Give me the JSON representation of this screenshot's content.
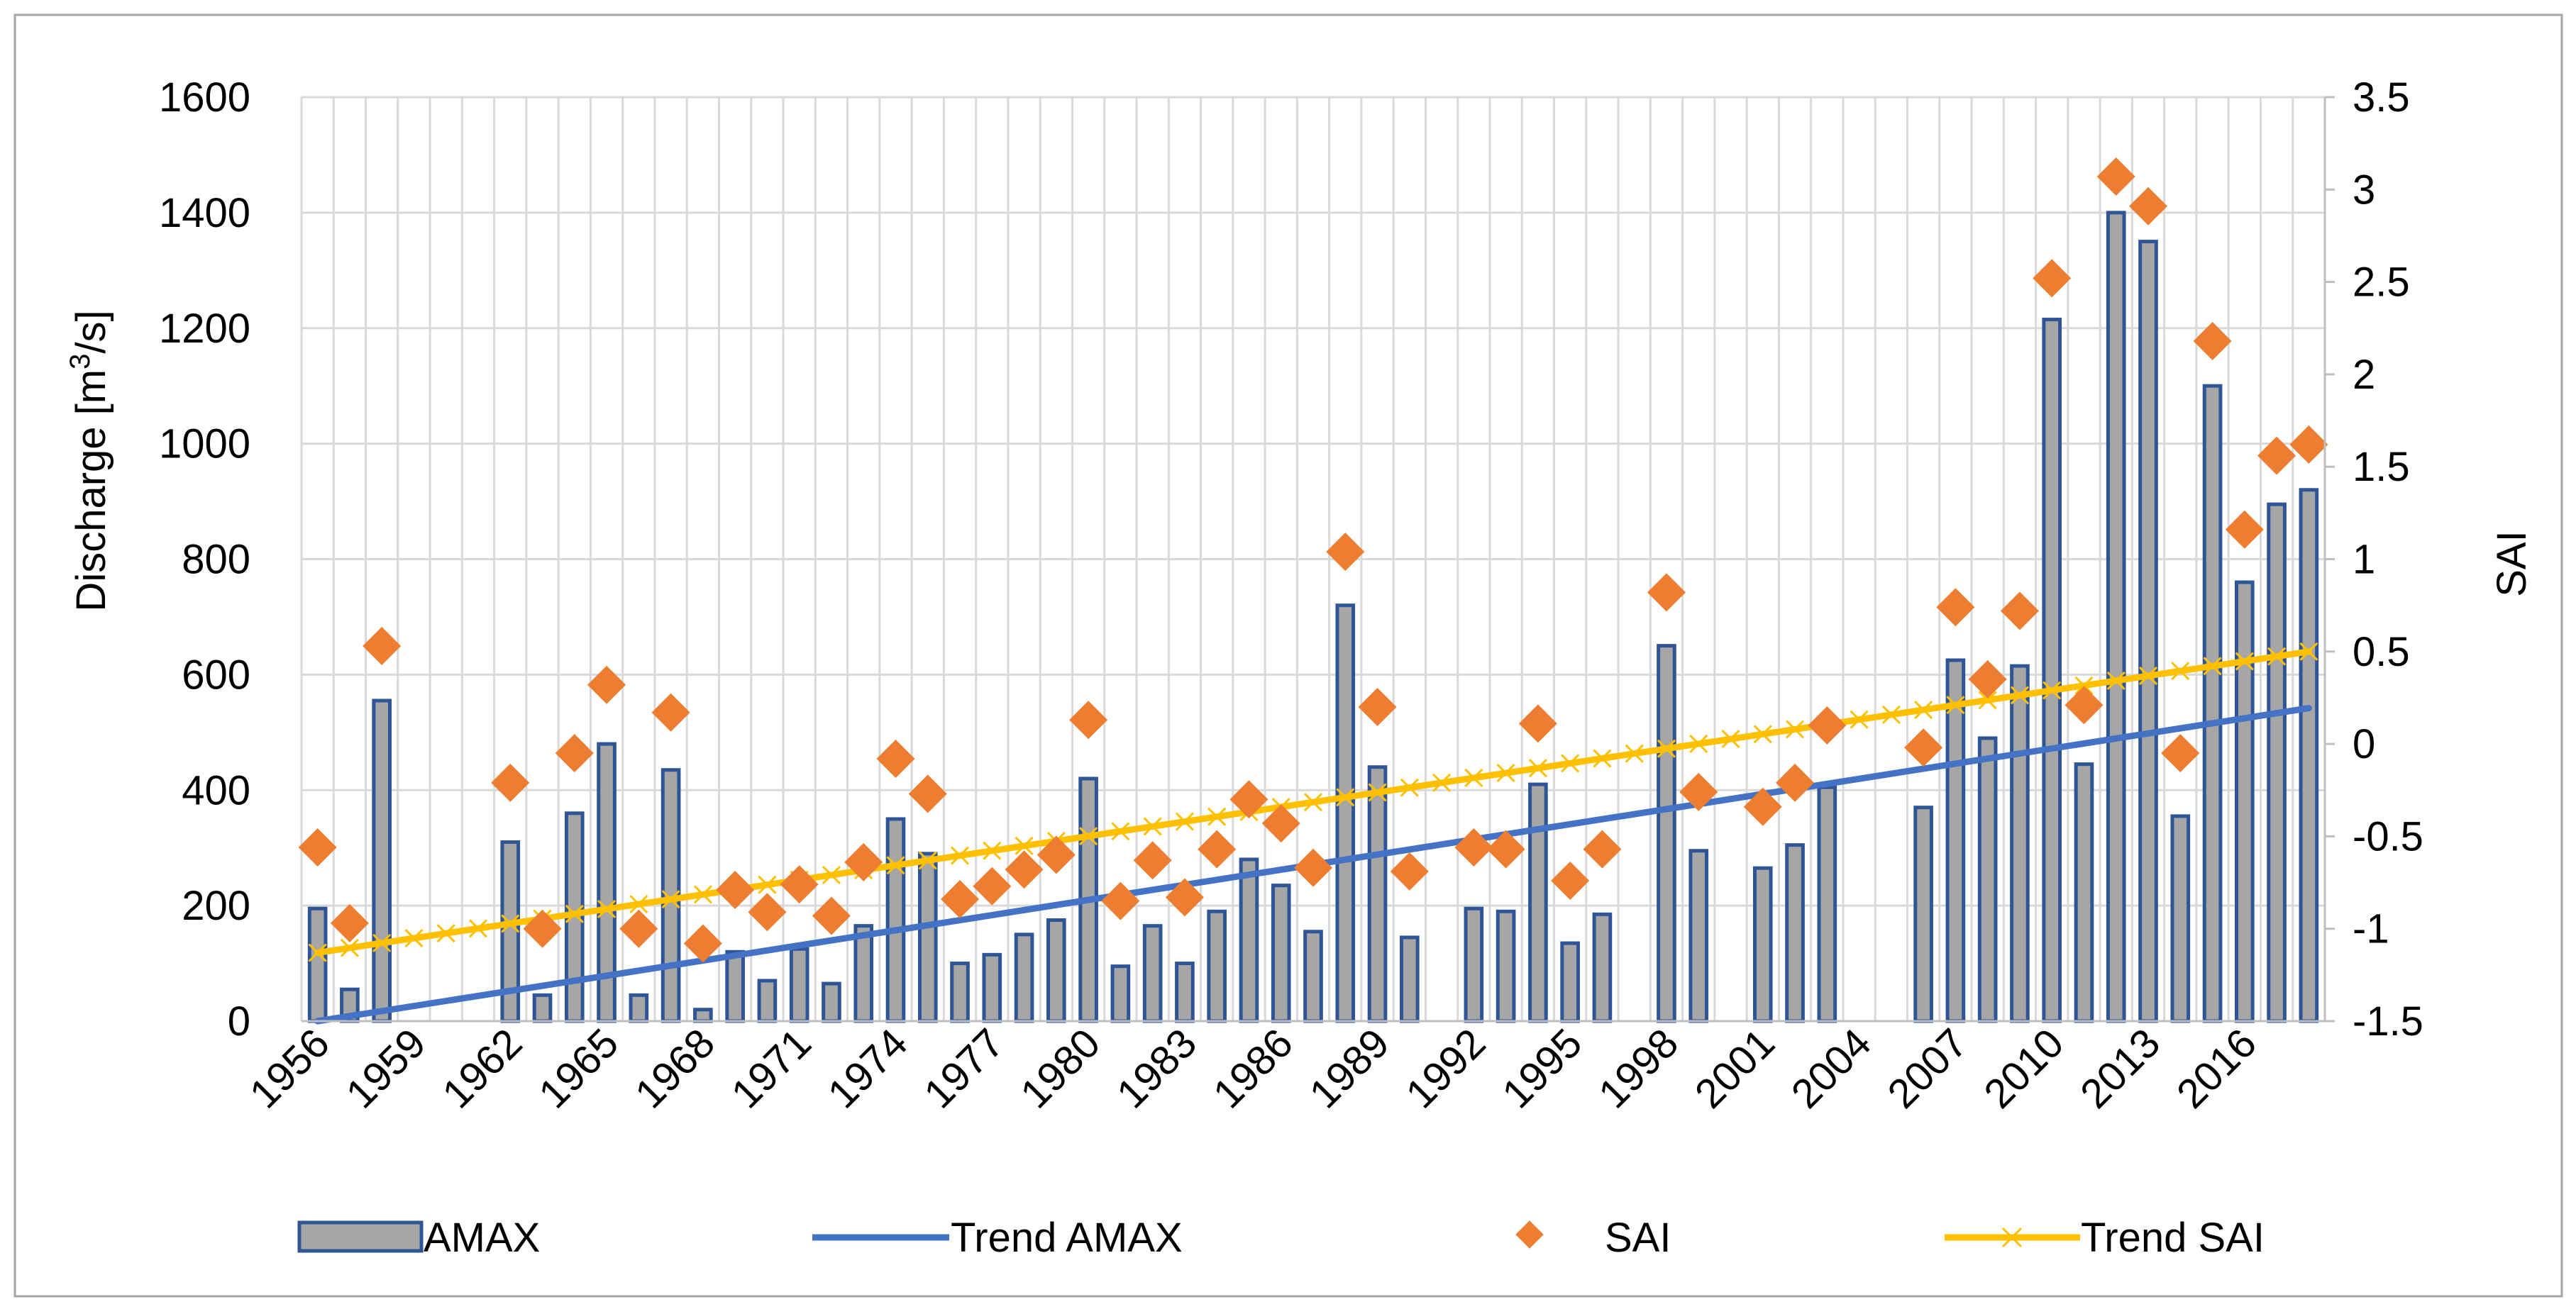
{
  "chart_data": {
    "type": "bar",
    "title": "",
    "xlabel": "",
    "ylabel": "Discharge  [m",
    "ylabel_superscript": "3",
    "ylabel_suffix": "/s]",
    "y2label": "SAI",
    "ylim": [
      0,
      1600
    ],
    "y2lim": [
      -1.5,
      3.5
    ],
    "yticks": [
      "0",
      "200",
      "400",
      "600",
      "800",
      "1000",
      "1200",
      "1400",
      "1600"
    ],
    "y2ticks": [
      "-1.5",
      "-1",
      "-0.5",
      "0",
      "0.5",
      "1",
      "1.5",
      "2",
      "2.5",
      "3",
      "3.5"
    ],
    "xtick_labels": [
      "1956",
      "1959",
      "1962",
      "1965",
      "1968",
      "1971",
      "1974",
      "1977",
      "1980",
      "1983",
      "1986",
      "1989",
      "1992",
      "1995",
      "1998",
      "2001",
      "2004",
      "2007",
      "2010",
      "2013",
      "2016"
    ],
    "grid": true,
    "categories": [
      "1956",
      "1957",
      "1958",
      "1959",
      "1960",
      "1961",
      "1962",
      "1963",
      "1964",
      "1965",
      "1966",
      "1967",
      "1968",
      "1969",
      "1970",
      "1971",
      "1972",
      "1973",
      "1974",
      "1975",
      "1976",
      "1977",
      "1978",
      "1979",
      "1980",
      "1981",
      "1982",
      "1983",
      "1984",
      "1985",
      "1986",
      "1987",
      "1988",
      "1989",
      "1990",
      "1991",
      "1992",
      "1993",
      "1994",
      "1995",
      "1996",
      "1997",
      "1998",
      "1999",
      "2000",
      "2001",
      "2002",
      "2003",
      "2004",
      "2005",
      "2006",
      "2007",
      "2008",
      "2009",
      "2010",
      "2011",
      "2012",
      "2013",
      "2014",
      "2015",
      "2016",
      "2017",
      "2018"
    ],
    "series": [
      {
        "name": "AMAX",
        "type": "bar",
        "axis": "left",
        "color": "#a6a6a6",
        "edge_color": "#2f5597",
        "values": [
          195,
          55,
          555,
          null,
          null,
          null,
          310,
          45,
          360,
          480,
          45,
          435,
          20,
          120,
          70,
          125,
          65,
          165,
          350,
          290,
          100,
          115,
          150,
          175,
          420,
          95,
          165,
          100,
          190,
          280,
          235,
          155,
          720,
          440,
          145,
          null,
          195,
          190,
          410,
          135,
          185,
          null,
          650,
          295,
          null,
          265,
          305,
          405,
          null,
          null,
          370,
          625,
          490,
          615,
          1215,
          445,
          1400,
          1350,
          355,
          1100,
          760,
          895,
          920
        ]
      },
      {
        "name": "Trend AMAX",
        "type": "line",
        "axis": "left",
        "color": "#4472c4",
        "start": 0,
        "end": 542
      },
      {
        "name": "SAI",
        "type": "scatter",
        "axis": "right",
        "color": "#ed7d31",
        "values": [
          -0.56,
          -0.97,
          0.53,
          null,
          null,
          null,
          -0.21,
          -1.0,
          -0.05,
          0.32,
          -1.0,
          0.17,
          -1.08,
          -0.79,
          -0.91,
          -0.76,
          -0.93,
          -0.64,
          -0.08,
          -0.27,
          -0.84,
          -0.77,
          -0.68,
          -0.6,
          0.13,
          -0.85,
          -0.63,
          -0.83,
          -0.57,
          -0.3,
          -0.43,
          -0.67,
          1.04,
          0.2,
          -0.69,
          null,
          -0.56,
          -0.57,
          0.11,
          -0.74,
          -0.57,
          null,
          0.82,
          -0.26,
          null,
          -0.34,
          -0.21,
          0.1,
          null,
          null,
          -0.02,
          0.74,
          0.35,
          0.72,
          2.52,
          0.21,
          3.07,
          2.91,
          -0.05,
          2.18,
          1.16,
          1.56,
          1.62
        ]
      },
      {
        "name": "Trend SAI",
        "type": "line",
        "axis": "right",
        "color": "#ffc000",
        "marker": "x",
        "start": -1.13,
        "end": 0.5
      }
    ],
    "legend": [
      "AMAX",
      "Trend AMAX",
      "SAI",
      "Trend SAI"
    ],
    "legend_position": "bottom"
  }
}
